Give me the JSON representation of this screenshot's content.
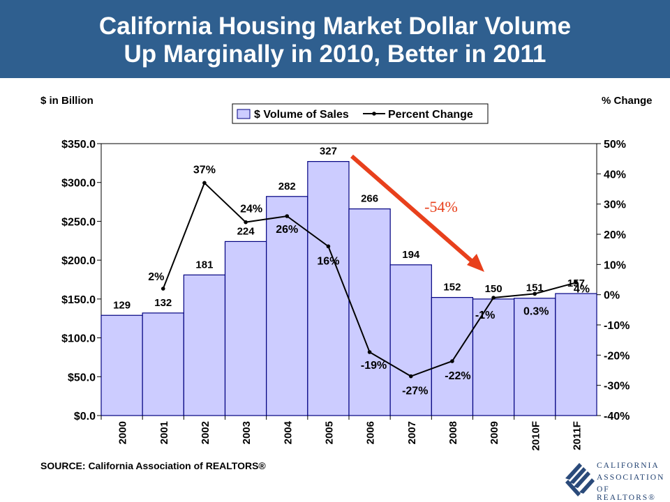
{
  "header": {
    "title_line1": "California Housing Market Dollar Volume",
    "title_line2": "Up Marginally in 2010, Better in 2011"
  },
  "left_axis_title": "$ in Billion",
  "right_axis_title": "% Change",
  "source": "SOURCE: California Association of REALTORS®",
  "logo": {
    "line1": "CALIFORNIA",
    "line2": "ASSOCIATION",
    "line3": "OF REALTORS®"
  },
  "annotation": {
    "text": "-54%",
    "color": "#e8401c"
  },
  "colors": {
    "bar_fill": "#ccccff",
    "bar_stroke": "#000080",
    "banner": "#2f5f8f"
  },
  "chart_data": {
    "type": "bar",
    "categories": [
      "2000",
      "2001",
      "2002",
      "2003",
      "2004",
      "2005",
      "2006",
      "2007",
      "2008",
      "2009",
      "2010F",
      "2011F"
    ],
    "series": [
      {
        "name": "$ Volume of Sales",
        "type": "bar",
        "axis": "left",
        "values": [
          129,
          132,
          181,
          224,
          282,
          327,
          266,
          194,
          152,
          150,
          151,
          157
        ],
        "labels": [
          "129",
          "132",
          "181",
          "224",
          "282",
          "327",
          "266",
          "194",
          "152",
          "150",
          "151",
          "157"
        ]
      },
      {
        "name": "Percent Change",
        "type": "line",
        "axis": "right",
        "values": [
          null,
          2,
          37,
          24,
          26,
          16,
          -19,
          -27,
          -22,
          -1,
          0.3,
          4
        ],
        "labels": [
          "",
          "2%",
          "37%",
          "24%",
          "26%",
          "16%",
          "-19%",
          "-27%",
          "-22%",
          "-1%",
          "0.3%",
          "4%"
        ]
      }
    ],
    "y_left": {
      "min": 0,
      "max": 350,
      "step": 50,
      "ticks": [
        "$0.0",
        "$50.0",
        "$100.0",
        "$150.0",
        "$200.0",
        "$250.0",
        "$300.0",
        "$350.0"
      ]
    },
    "y_right": {
      "min": -40,
      "max": 50,
      "step": 10,
      "ticks": [
        "-40%",
        "-30%",
        "-20%",
        "-10%",
        "0%",
        "10%",
        "20%",
        "30%",
        "40%",
        "50%"
      ]
    },
    "legend_position": "top-center",
    "grid": false
  }
}
